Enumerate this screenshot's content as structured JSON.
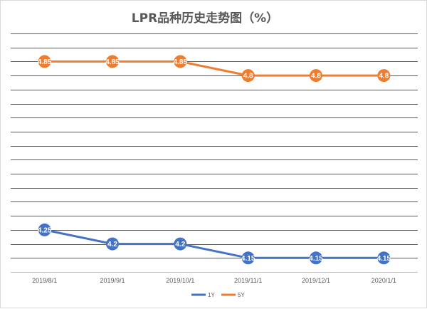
{
  "chart_data": {
    "type": "line",
    "title": "LPR品种历史走势图（%）",
    "categories": [
      "2019/8/1",
      "2019/9/1",
      "2019/10/1",
      "2019/11/1",
      "2019/12/1",
      "2020/1/1"
    ],
    "series": [
      {
        "name": "1Y",
        "color": "#4472c4",
        "values": [
          4.25,
          4.2,
          4.2,
          4.15,
          4.15,
          4.15
        ],
        "labels": [
          "4.25",
          "4.2",
          "4.2",
          "4.15",
          "4.15",
          "4.15"
        ]
      },
      {
        "name": "5Y",
        "color": "#ed7d31",
        "values": [
          4.85,
          4.85,
          4.85,
          4.8,
          4.8,
          4.8
        ],
        "labels": [
          "4.85",
          "4.85",
          "4.85",
          "4.8",
          "4.8",
          "4.8"
        ]
      }
    ],
    "ylim": [
      4.1,
      4.95
    ],
    "grid": true,
    "legend": "bottom"
  }
}
